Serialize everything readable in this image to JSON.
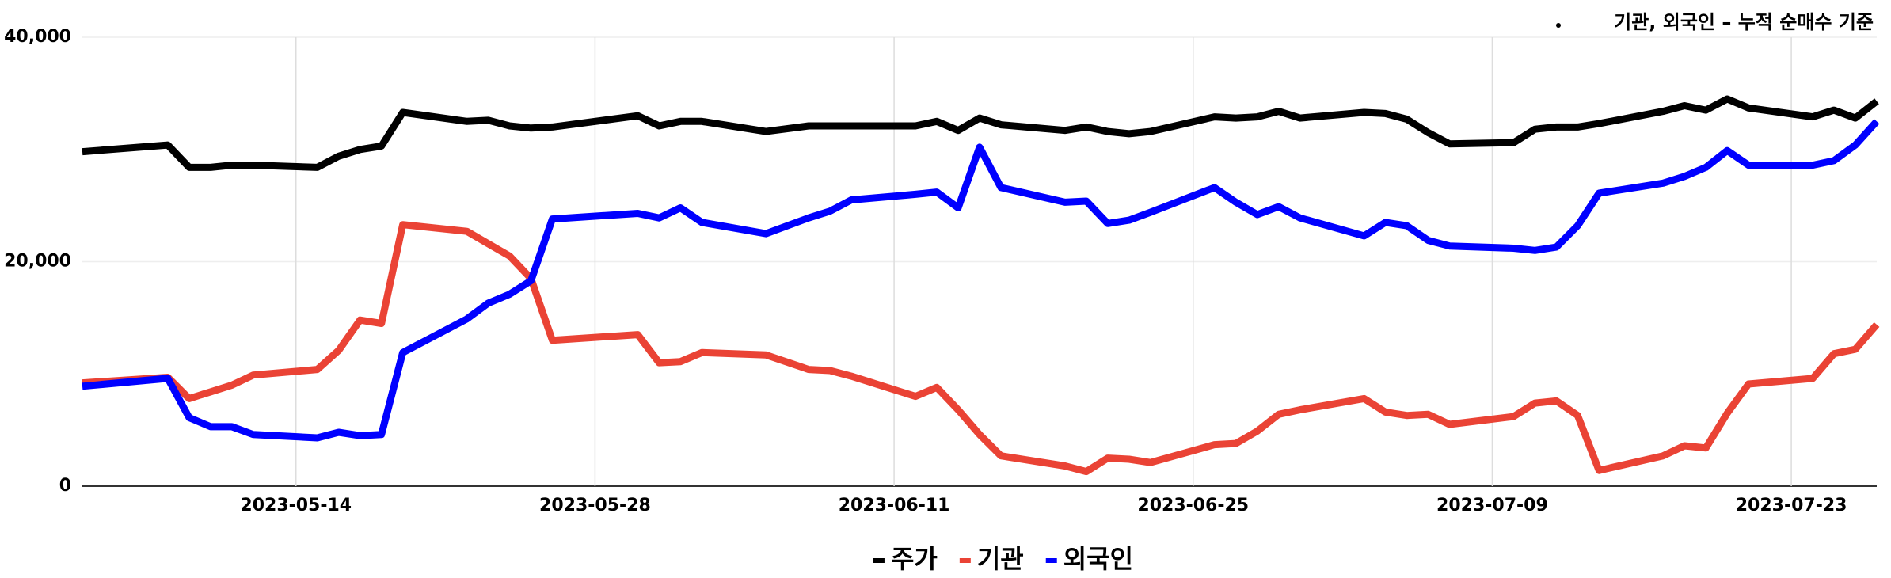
{
  "chart_data": {
    "type": "line",
    "annotation": "기관, 외국인 – 누적 순매수 기준",
    "x": [
      "2023-05-04",
      "2023-05-08",
      "2023-05-09",
      "2023-05-10",
      "2023-05-11",
      "2023-05-12",
      "2023-05-15",
      "2023-05-16",
      "2023-05-17",
      "2023-05-18",
      "2023-05-19",
      "2023-05-22",
      "2023-05-23",
      "2023-05-24",
      "2023-05-25",
      "2023-05-26",
      "2023-05-30",
      "2023-05-31",
      "2023-06-01",
      "2023-06-02",
      "2023-06-05",
      "2023-06-07",
      "2023-06-08",
      "2023-06-09",
      "2023-06-12",
      "2023-06-13",
      "2023-06-14",
      "2023-06-15",
      "2023-06-16",
      "2023-06-19",
      "2023-06-20",
      "2023-06-21",
      "2023-06-22",
      "2023-06-23",
      "2023-06-26",
      "2023-06-27",
      "2023-06-28",
      "2023-06-29",
      "2023-06-30",
      "2023-07-03",
      "2023-07-04",
      "2023-07-05",
      "2023-07-06",
      "2023-07-07",
      "2023-07-10",
      "2023-07-11",
      "2023-07-12",
      "2023-07-13",
      "2023-07-14",
      "2023-07-17",
      "2023-07-18",
      "2023-07-19",
      "2023-07-20",
      "2023-07-21",
      "2023-07-24",
      "2023-07-25",
      "2023-07-26",
      "2023-07-27"
    ],
    "series": [
      {
        "name": "주가",
        "color": "#000000",
        "values": [
          29800,
          30400,
          28400,
          28400,
          28600,
          28600,
          28400,
          29400,
          30000,
          30300,
          33300,
          32500,
          32600,
          32100,
          31900,
          32000,
          33000,
          32100,
          32500,
          32500,
          31600,
          32100,
          32100,
          32100,
          32100,
          32500,
          31700,
          32800,
          32200,
          31700,
          32000,
          31600,
          31400,
          31600,
          32900,
          32800,
          32900,
          33400,
          32800,
          33300,
          33200,
          32700,
          31500,
          30500,
          30600,
          31800,
          32000,
          32000,
          32300,
          33400,
          33900,
          33500,
          34500,
          33700,
          32900,
          33500,
          32800,
          34300
        ]
      },
      {
        "name": "기관",
        "color": "#ea4335",
        "values": [
          9200,
          9700,
          7800,
          8400,
          9000,
          9900,
          10400,
          12100,
          14800,
          14500,
          23300,
          22700,
          21600,
          20500,
          18500,
          13000,
          13500,
          11000,
          11100,
          11900,
          11700,
          10400,
          10300,
          9800,
          8000,
          8800,
          6800,
          4600,
          2700,
          1800,
          1300,
          2500,
          2400,
          2100,
          3700,
          3800,
          4900,
          6400,
          6800,
          7800,
          6600,
          6300,
          6400,
          5500,
          6200,
          7400,
          7600,
          6300,
          1400,
          2700,
          3600,
          3400,
          6500,
          9100,
          9600,
          11800,
          12200,
          14400
        ]
      },
      {
        "name": "외국인",
        "color": "#0000ff",
        "values": [
          8900,
          9600,
          6100,
          5300,
          5300,
          4600,
          4300,
          4800,
          4500,
          4600,
          11900,
          14900,
          16300,
          17100,
          18300,
          23800,
          24300,
          23900,
          24800,
          23500,
          22500,
          23900,
          24500,
          25500,
          26000,
          26200,
          24800,
          30200,
          26600,
          25300,
          25400,
          23400,
          23700,
          24400,
          26600,
          25300,
          24200,
          24900,
          23900,
          22300,
          23500,
          23200,
          21900,
          21400,
          21200,
          21000,
          21300,
          23200,
          26100,
          27000,
          27600,
          28400,
          29900,
          28600,
          28600,
          29000,
          30400,
          32500
        ]
      }
    ],
    "xlim": [
      "2023-05-04",
      "2023-07-27"
    ],
    "xticks": [
      "2023-05-14",
      "2023-05-28",
      "2023-06-11",
      "2023-06-25",
      "2023-07-09",
      "2023-07-23"
    ],
    "ylim": [
      0,
      40000
    ],
    "yticks": [
      0,
      {
        "value": 20000,
        "label": "20,000"
      },
      {
        "value": 40000,
        "label": "40,000"
      }
    ],
    "grid": true,
    "legend": "bottom"
  }
}
